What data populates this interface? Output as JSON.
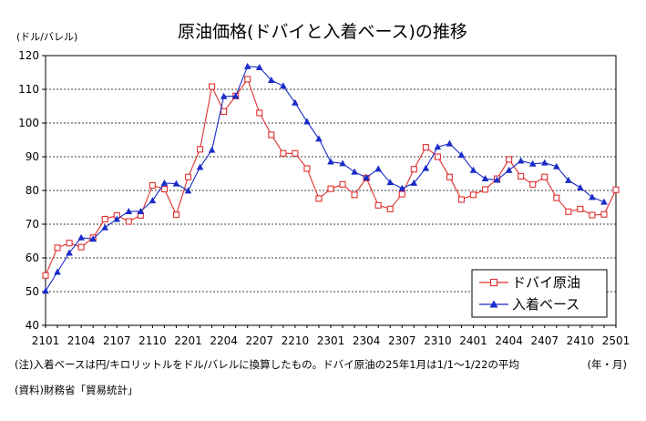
{
  "chart_data": {
    "type": "line",
    "title": "原油価格(ドバイと入着ベース)の推移",
    "ylabel": "(ドル/バレル)",
    "xlabel": "(年・月)",
    "ylim": [
      40,
      120
    ],
    "yticks": [
      40,
      50,
      60,
      70,
      80,
      90,
      100,
      110,
      120
    ],
    "x_tick_labels": [
      "2101",
      "2104",
      "2107",
      "2110",
      "2201",
      "2204",
      "2207",
      "2210",
      "2301",
      "2304",
      "2307",
      "2310",
      "2401",
      "2404",
      "2407",
      "2410",
      "2501"
    ],
    "grid": "horizontal",
    "legend_position": "bottom-right",
    "x": [
      "2101",
      "2102",
      "2103",
      "2104",
      "2105",
      "2106",
      "2107",
      "2108",
      "2109",
      "2110",
      "2111",
      "2112",
      "2201",
      "2202",
      "2203",
      "2204",
      "2205",
      "2206",
      "2207",
      "2208",
      "2209",
      "2210",
      "2211",
      "2212",
      "2301",
      "2302",
      "2303",
      "2304",
      "2305",
      "2306",
      "2307",
      "2308",
      "2309",
      "2310",
      "2311",
      "2312",
      "2401",
      "2402",
      "2403",
      "2404",
      "2405",
      "2406",
      "2407",
      "2408",
      "2409",
      "2410",
      "2411",
      "2412",
      "2501"
    ],
    "series": [
      {
        "name": "ドバイ原油",
        "color": "#e03030",
        "marker": "square-open",
        "values": [
          54.8,
          63.0,
          64.4,
          63.2,
          66.0,
          71.5,
          72.6,
          70.8,
          72.6,
          81.5,
          80.4,
          72.8,
          84.0,
          92.2,
          110.8,
          103.4,
          108.0,
          113.0,
          103.0,
          96.5,
          91.0,
          91.0,
          86.5,
          77.6,
          80.5,
          81.8,
          78.7,
          83.7,
          75.6,
          74.5,
          78.9,
          86.3,
          92.8,
          90.0,
          84.0,
          77.3,
          78.7,
          80.3,
          83.5,
          89.2,
          84.2,
          81.8,
          84.0,
          77.8,
          73.7,
          74.5,
          72.7,
          72.9,
          80.2
        ]
      },
      {
        "name": "入着ベース",
        "color": "#1a2cc8",
        "marker": "triangle-filled",
        "values": [
          50.2,
          55.8,
          61.5,
          66.0,
          65.6,
          69.0,
          71.5,
          73.8,
          73.8,
          77.0,
          82.2,
          82.0,
          79.9,
          86.9,
          92.0,
          107.9,
          108.0,
          116.8,
          116.5,
          112.7,
          111.0,
          106.0,
          100.4,
          95.3,
          88.5,
          88.0,
          85.5,
          83.8,
          86.4,
          82.4,
          80.6,
          82.2,
          86.6,
          92.9,
          93.9,
          90.5,
          86.0,
          83.5,
          83.1,
          86.0,
          88.8,
          87.9,
          88.2,
          87.1,
          83.0,
          80.8,
          78.0,
          76.6,
          null
        ]
      }
    ]
  },
  "notes": {
    "note1": "(注)入着ベースは円/キロリットルをドル/バレルに換算したもの。ドバイ原油の25年1月は1/1～1/22の平均",
    "source": "(資料)財務省「貿易統計」"
  }
}
